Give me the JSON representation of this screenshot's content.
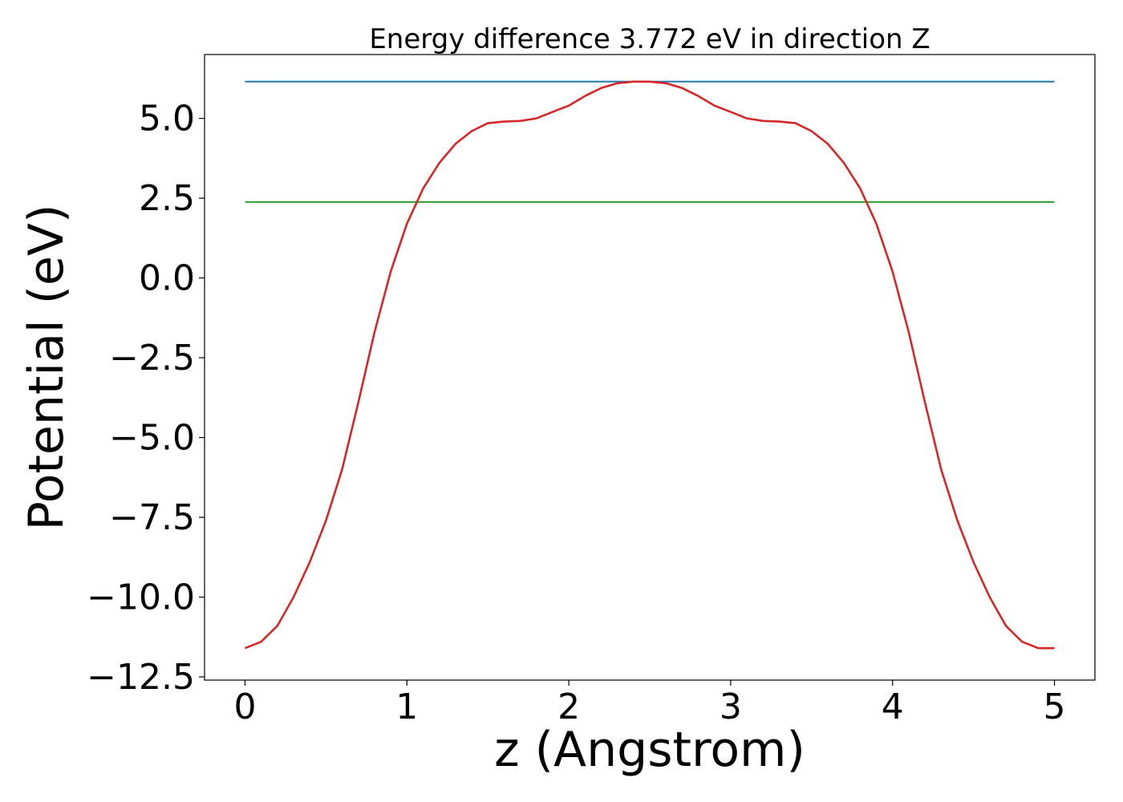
{
  "chart_data": {
    "type": "line",
    "title": "Energy difference 3.772 eV in direction Z",
    "xlabel": "z (Angstrom)",
    "ylabel": "Potential (eV)",
    "xlim": [
      -0.25,
      5.25
    ],
    "ylim": [
      -12.6,
      7.0
    ],
    "xticks": [
      0,
      1,
      2,
      3,
      4,
      5
    ],
    "xtick_labels": [
      "0",
      "1",
      "2",
      "3",
      "4",
      "5"
    ],
    "yticks": [
      -12.5,
      -10.0,
      -7.5,
      -5.0,
      -2.5,
      0.0,
      2.5,
      5.0
    ],
    "ytick_labels": [
      "−12.5",
      "−10.0",
      "−7.5",
      "−5.0",
      "−2.5",
      "0.0",
      "2.5",
      "5.0"
    ],
    "grid": false,
    "series": [
      {
        "color": "#1f77b4",
        "x": [
          0,
          5
        ],
        "y": [
          6.15,
          6.15
        ]
      },
      {
        "color": "#2ca02c",
        "x": [
          0,
          5
        ],
        "y": [
          2.38,
          2.38
        ]
      },
      {
        "color": "#d62728",
        "x": [
          0,
          0.1,
          0.2,
          0.3,
          0.4,
          0.5,
          0.6,
          0.7,
          0.8,
          0.9,
          1.0,
          1.1,
          1.2,
          1.3,
          1.4,
          1.5,
          1.6,
          1.7,
          1.8,
          1.9,
          2.0,
          2.1,
          2.2,
          2.3,
          2.4,
          2.5,
          2.6,
          2.7,
          2.8,
          2.9,
          3.0,
          3.1,
          3.2,
          3.3,
          3.4,
          3.5,
          3.6,
          3.7,
          3.8,
          3.9,
          4.0,
          4.1,
          4.2,
          4.3,
          4.4,
          4.5,
          4.6,
          4.7,
          4.8,
          4.9,
          5.0
        ],
        "y": [
          -11.6,
          -11.4,
          -10.9,
          -10.0,
          -8.9,
          -7.6,
          -6.0,
          -3.9,
          -1.7,
          0.2,
          1.7,
          2.8,
          3.6,
          4.2,
          4.6,
          4.85,
          4.9,
          4.92,
          5.0,
          5.2,
          5.4,
          5.7,
          5.95,
          6.1,
          6.15,
          6.15,
          6.1,
          5.95,
          5.7,
          5.4,
          5.2,
          5.0,
          4.92,
          4.9,
          4.85,
          4.6,
          4.2,
          3.6,
          2.8,
          1.7,
          0.2,
          -1.7,
          -3.9,
          -6.0,
          -7.6,
          -8.9,
          -10.0,
          -10.9,
          -11.4,
          -11.6,
          -11.6
        ]
      }
    ]
  }
}
